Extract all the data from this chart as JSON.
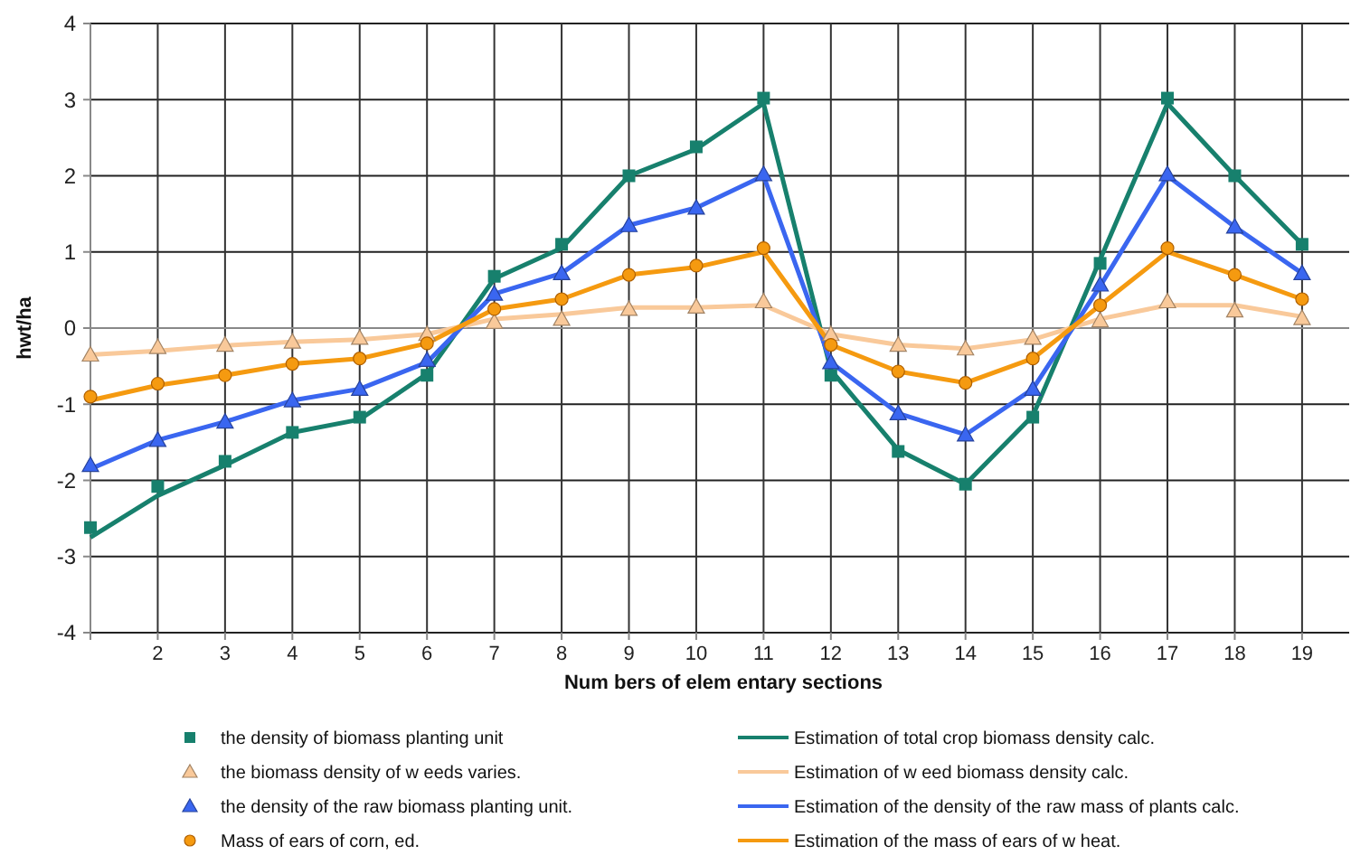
{
  "chart_data": {
    "type": "line",
    "xlabel": "Num bers of elem entary sections",
    "ylabel": "hwt/ha",
    "x": [
      1,
      2,
      3,
      4,
      5,
      6,
      7,
      8,
      9,
      10,
      11,
      12,
      13,
      14,
      15,
      16,
      17,
      18,
      19
    ],
    "xlim": [
      1,
      19.7
    ],
    "xticks": [
      {
        "value": 1,
        "label": null
      },
      2,
      3,
      4,
      5,
      6,
      7,
      8,
      9,
      10,
      11,
      12,
      13,
      14,
      15,
      16,
      17,
      18,
      19
    ],
    "ylim": [
      -4,
      4
    ],
    "yticks": [
      -4,
      -3,
      -2,
      -1,
      0,
      1,
      2,
      3,
      4
    ],
    "grid": true,
    "legend": "bottom",
    "series": [
      {
        "name": "the density of biomass planting unit",
        "type": "scatter",
        "marker": "square",
        "color": "#17806d",
        "values": [
          -2.62,
          -2.08,
          -1.75,
          -1.37,
          -1.17,
          -0.62,
          0.68,
          1.1,
          2.0,
          2.38,
          3.02,
          -0.62,
          -1.62,
          -2.05,
          -1.17,
          0.85,
          3.02,
          2.0,
          1.1
        ]
      },
      {
        "name": "the biomass density of w eeds varies.",
        "type": "scatter",
        "marker": "triangle",
        "color": "#f9c99a",
        "values": [
          -0.35,
          -0.25,
          -0.22,
          -0.18,
          -0.13,
          -0.08,
          0.08,
          0.12,
          0.25,
          0.28,
          0.35,
          -0.08,
          -0.22,
          -0.27,
          -0.13,
          0.1,
          0.35,
          0.23,
          0.13
        ]
      },
      {
        "name": "the density of the raw  biomass planting unit.",
        "type": "scatter",
        "marker": "triangle",
        "color": "#3a66f0",
        "values": [
          -1.8,
          -1.47,
          -1.23,
          -0.95,
          -0.8,
          -0.42,
          0.45,
          0.72,
          1.35,
          1.58,
          2.02,
          -0.45,
          -1.12,
          -1.4,
          -0.8,
          0.57,
          2.02,
          1.33,
          0.72
        ]
      },
      {
        "name": "Mass of ears of corn, ed.",
        "type": "scatter",
        "marker": "circle",
        "color": "#f59a10",
        "values": [
          -0.9,
          -0.73,
          -0.62,
          -0.47,
          -0.4,
          -0.2,
          0.25,
          0.38,
          0.7,
          0.82,
          1.05,
          -0.22,
          -0.57,
          -0.72,
          -0.4,
          0.3,
          1.05,
          0.7,
          0.38
        ]
      },
      {
        "name": "Estimation of total crop biomass density calc.",
        "type": "line",
        "marker": "none",
        "color": "#17806d",
        "values": [
          -2.75,
          -2.2,
          -1.8,
          -1.37,
          -1.2,
          -0.6,
          0.65,
          1.05,
          2.0,
          2.35,
          2.95,
          -0.55,
          -1.6,
          -2.05,
          -1.15,
          0.9,
          2.95,
          2.0,
          1.1
        ]
      },
      {
        "name": "Estimation of w eed biomass density calc.",
        "type": "line",
        "marker": "none",
        "color": "#f9c99a",
        "values": [
          -0.35,
          -0.3,
          -0.23,
          -0.18,
          -0.15,
          -0.08,
          0.12,
          0.18,
          0.27,
          0.27,
          0.3,
          -0.08,
          -0.22,
          -0.27,
          -0.15,
          0.12,
          0.3,
          0.3,
          0.15
        ]
      },
      {
        "name": "Estimation of the density of the raw  mass of plants calc.",
        "type": "line",
        "marker": "none",
        "color": "#3a66f0",
        "values": [
          -1.85,
          -1.47,
          -1.23,
          -0.95,
          -0.8,
          -0.45,
          0.45,
          0.72,
          1.35,
          1.58,
          2.0,
          -0.45,
          -1.12,
          -1.4,
          -0.8,
          0.55,
          2.0,
          1.33,
          0.72
        ]
      },
      {
        "name": "Estimation of the mass of ears of w heat.",
        "type": "line",
        "marker": "none",
        "color": "#f59a10",
        "values": [
          -0.95,
          -0.75,
          -0.62,
          -0.47,
          -0.4,
          -0.2,
          0.25,
          0.38,
          0.7,
          0.8,
          1.0,
          -0.22,
          -0.57,
          -0.72,
          -0.4,
          0.3,
          1.0,
          0.7,
          0.38
        ]
      }
    ]
  }
}
